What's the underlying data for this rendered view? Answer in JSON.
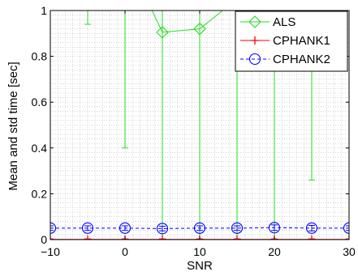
{
  "chart_data": {
    "type": "line",
    "xlabel": "SNR",
    "ylabel": "Mean and std time [sec]",
    "xlim": [
      -10,
      30
    ],
    "ylim": [
      0,
      1
    ],
    "x_ticks": [
      -10,
      0,
      10,
      20,
      30
    ],
    "x_tick_labels": [
      "−10",
      "0",
      "10",
      "20",
      "30"
    ],
    "y_ticks": [
      0,
      0.2,
      0.4,
      0.6,
      0.8,
      1
    ],
    "y_tick_labels": [
      "0",
      "0.2",
      "0.4",
      "0.6",
      "0.8",
      "1"
    ],
    "grid": "dotted",
    "minor_grid": true,
    "legend_position": "top-right",
    "x": [
      -10,
      -5,
      0,
      5,
      10,
      15,
      20,
      25,
      30
    ],
    "series": [
      {
        "name": "ALS",
        "color": "#22dd22",
        "marker": "diamond",
        "line": "solid",
        "values": [
          1.2,
          1.1,
          1.25,
          0.905,
          0.92,
          1.05,
          1.1,
          1.05,
          1.1
        ],
        "error_low": [
          1.2,
          0.94,
          0.4,
          0.0,
          0.0,
          0.0,
          0.0,
          0.26,
          0.0
        ],
        "error_high": [
          1.3,
          1.2,
          1.5,
          1.1,
          1.1,
          1.2,
          1.2,
          1.2,
          1.2
        ]
      },
      {
        "name": "CPHANK1",
        "color": "#ff0000",
        "marker": "plus",
        "line": "solid",
        "values": [
          0.001,
          0.001,
          0.001,
          0.001,
          0.001,
          0.001,
          0.001,
          0.001,
          0.001
        ],
        "error_low": [
          0,
          0,
          0,
          0,
          0,
          0,
          0,
          0,
          0
        ],
        "error_high": [
          0.003,
          0.003,
          0.003,
          0.003,
          0.003,
          0.003,
          0.003,
          0.003,
          0.003
        ]
      },
      {
        "name": "CPHANK2",
        "color": "#0000ff",
        "marker": "circle",
        "line": "dashed",
        "values": [
          0.05,
          0.05,
          0.05,
          0.048,
          0.05,
          0.05,
          0.052,
          0.05,
          0.05
        ],
        "error_low": [
          0.04,
          0.04,
          0.04,
          0.038,
          0.04,
          0.04,
          0.04,
          0.038,
          0.04
        ],
        "error_high": [
          0.06,
          0.06,
          0.06,
          0.058,
          0.06,
          0.06,
          0.064,
          0.062,
          0.06
        ]
      }
    ]
  }
}
